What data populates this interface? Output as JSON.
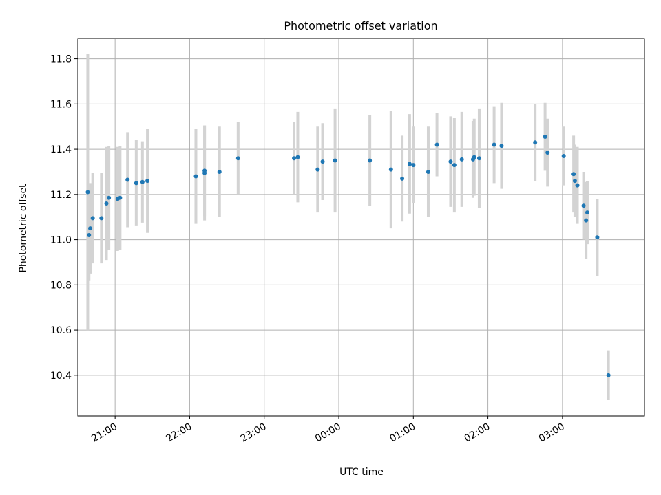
{
  "chart_data": {
    "type": "scatter",
    "title": "Photometric offset variation",
    "xlabel": "UTC time",
    "ylabel": "Photometric offset",
    "x_tick_labels": [
      "21:00",
      "22:00",
      "23:00",
      "00:00",
      "01:00",
      "02:00",
      "03:00"
    ],
    "y_tick_labels": [
      "10.4",
      "10.6",
      "10.8",
      "11.0",
      "11.2",
      "11.4",
      "11.6",
      "11.8"
    ],
    "y_ticks": [
      10.4,
      10.6,
      10.8,
      11.0,
      11.2,
      11.4,
      11.6,
      11.8
    ],
    "ylim": [
      10.22,
      11.89
    ],
    "grid": true,
    "marker_color": "#1f77b4",
    "errorbar_color": "#d3d3d3",
    "series": [
      {
        "x": [
          "20:38",
          "20:39",
          "20:40",
          "20:42",
          "20:49",
          "20:53",
          "20:55",
          "21:02",
          "21:04",
          "21:10",
          "21:17",
          "21:22",
          "21:26",
          "22:05",
          "22:12",
          "22:12",
          "22:24",
          "22:39",
          "23:24",
          "23:27",
          "23:43",
          "23:47",
          "23:57",
          "00:25",
          "00:42",
          "00:51",
          "00:57",
          "01:00",
          "01:12",
          "01:19",
          "01:30",
          "01:33",
          "01:39",
          "01:48",
          "01:49",
          "01:53",
          "02:05",
          "02:11",
          "02:38",
          "02:46",
          "02:48",
          "03:01",
          "03:09",
          "03:10",
          "03:12",
          "03:17",
          "03:19",
          "03:20",
          "03:28",
          "03:37"
        ],
        "y": [
          11.21,
          11.02,
          11.05,
          11.095,
          11.095,
          11.16,
          11.185,
          11.18,
          11.185,
          11.265,
          11.25,
          11.255,
          11.26,
          11.28,
          11.295,
          11.305,
          11.3,
          11.36,
          11.36,
          11.365,
          11.31,
          11.345,
          11.35,
          11.35,
          11.31,
          11.27,
          11.335,
          11.33,
          11.3,
          11.42,
          11.345,
          11.33,
          11.355,
          11.355,
          11.365,
          11.36,
          11.42,
          11.415,
          11.43,
          11.455,
          11.385,
          11.37,
          11.29,
          11.26,
          11.24,
          11.15,
          11.085,
          11.12,
          11.01,
          10.4
        ],
        "yerr": [
          0.61,
          0.2,
          0.2,
          0.2,
          0.2,
          0.25,
          0.23,
          0.23,
          0.23,
          0.21,
          0.19,
          0.18,
          0.23,
          0.21,
          0.21,
          0.2,
          0.2,
          0.16,
          0.16,
          0.2,
          0.19,
          0.17,
          0.23,
          0.2,
          0.26,
          0.19,
          0.22,
          0.17,
          0.2,
          0.14,
          0.2,
          0.21,
          0.21,
          0.17,
          0.17,
          0.22,
          0.17,
          0.19,
          0.17,
          0.15,
          0.15,
          0.13,
          0.17,
          0.16,
          0.17,
          0.15,
          0.17,
          0.14,
          0.17,
          0.11
        ]
      }
    ]
  }
}
